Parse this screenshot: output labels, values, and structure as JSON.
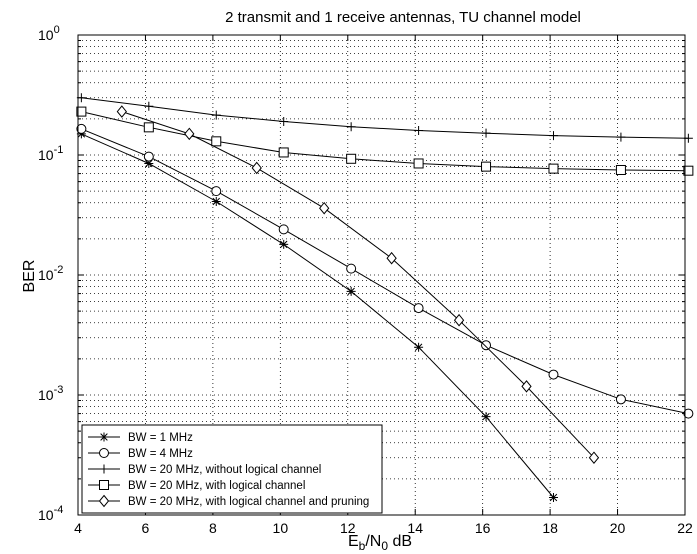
{
  "chart_data": {
    "type": "line",
    "title": "2 transmit and 1 receive antennas, TU channel model",
    "xlabel": {
      "main": "E",
      "sub1": "b",
      "mid": "/N",
      "sub2": "0",
      "unit": " dB"
    },
    "ylabel": "BER",
    "xlim": [
      4,
      22
    ],
    "ylim": [
      0.0001,
      1
    ],
    "yscale": "log",
    "grid": true,
    "legend_position": "bottom-left",
    "x_ticks": [
      "4",
      "6",
      "8",
      "10",
      "12",
      "14",
      "16",
      "18",
      "20",
      "22"
    ],
    "y_ticks": [
      {
        "base": "10",
        "exp": "0"
      },
      {
        "base": "10",
        "exp": "-1"
      },
      {
        "base": "10",
        "exp": "-2"
      },
      {
        "base": "10",
        "exp": "-3"
      },
      {
        "base": "10",
        "exp": "-4"
      }
    ],
    "series": [
      {
        "name": "BW = 1 MHz",
        "marker": "asterisk",
        "points": [
          [
            4.1,
            0.15
          ],
          [
            6.1,
            0.085
          ],
          [
            8.1,
            0.041
          ],
          [
            10.1,
            0.018
          ],
          [
            12.1,
            0.0073
          ],
          [
            14.1,
            0.0025
          ],
          [
            16.1,
            0.00066
          ],
          [
            18.1,
            0.00014
          ]
        ]
      },
      {
        "name": "BW = 4 MHz",
        "marker": "circle",
        "points": [
          [
            4.1,
            0.165
          ],
          [
            6.1,
            0.097
          ],
          [
            8.1,
            0.05
          ],
          [
            10.1,
            0.024
          ],
          [
            12.1,
            0.0113
          ],
          [
            14.1,
            0.0053
          ],
          [
            16.1,
            0.0026
          ],
          [
            18.1,
            0.00148
          ],
          [
            20.1,
            0.00092
          ],
          [
            22.1,
            0.0007
          ]
        ]
      },
      {
        "name": "BW = 20 MHz, without logical channel",
        "marker": "plus",
        "points": [
          [
            4.1,
            0.3
          ],
          [
            6.1,
            0.255
          ],
          [
            8.1,
            0.215
          ],
          [
            10.1,
            0.19
          ],
          [
            12.1,
            0.172
          ],
          [
            14.1,
            0.16
          ],
          [
            16.1,
            0.152
          ],
          [
            18.1,
            0.145
          ],
          [
            20.1,
            0.141
          ],
          [
            22.1,
            0.138
          ]
        ]
      },
      {
        "name": "BW = 20 MHz, with logical channel",
        "marker": "square",
        "points": [
          [
            4.1,
            0.23
          ],
          [
            6.1,
            0.17
          ],
          [
            8.1,
            0.13
          ],
          [
            10.1,
            0.105
          ],
          [
            12.1,
            0.093
          ],
          [
            14.1,
            0.085
          ],
          [
            16.1,
            0.08
          ],
          [
            18.1,
            0.077
          ],
          [
            20.1,
            0.075
          ],
          [
            22.1,
            0.074
          ]
        ]
      },
      {
        "name": "BW = 20 MHz, with logical channel and pruning",
        "marker": "diamond",
        "points": [
          [
            5.3,
            0.23
          ],
          [
            7.3,
            0.15
          ],
          [
            9.3,
            0.078
          ],
          [
            11.3,
            0.036
          ],
          [
            13.3,
            0.0138
          ],
          [
            15.3,
            0.0042
          ],
          [
            17.3,
            0.00118
          ],
          [
            19.3,
            0.0003
          ]
        ]
      }
    ]
  }
}
